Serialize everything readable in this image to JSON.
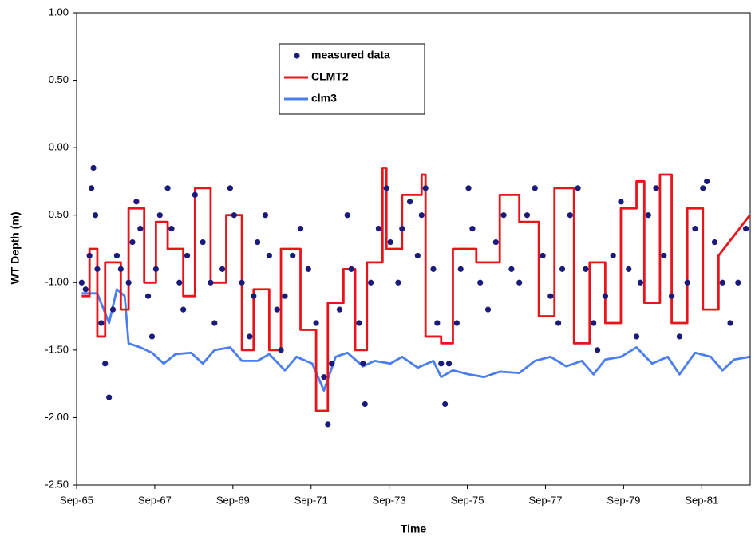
{
  "chart_data": {
    "type": "line",
    "xlabel": "Time",
    "ylabel": "WT Depth (m)",
    "xlim": [
      1965.67,
      1982.91
    ],
    "xticks": [
      {
        "value": 1965.67,
        "label": "Sep-65"
      },
      {
        "value": 1967.67,
        "label": "Sep-67"
      },
      {
        "value": 1969.67,
        "label": "Sep-69"
      },
      {
        "value": 1971.67,
        "label": "Sep-71"
      },
      {
        "value": 1973.67,
        "label": "Sep-73"
      },
      {
        "value": 1975.67,
        "label": "Sep-75"
      },
      {
        "value": 1977.67,
        "label": "Sep-77"
      },
      {
        "value": 1979.67,
        "label": "Sep-79"
      },
      {
        "value": 1981.67,
        "label": "Sep-81"
      }
    ],
    "ylim": [
      -2.5,
      1.0
    ],
    "yticks": [
      {
        "value": -2.5,
        "label": "-2.50"
      },
      {
        "value": -2.0,
        "label": "-2.00"
      },
      {
        "value": -1.5,
        "label": "-1.50"
      },
      {
        "value": -1.0,
        "label": "-1.00"
      },
      {
        "value": -0.5,
        "label": "-0.50"
      },
      {
        "value": 0.0,
        "label": "0.00"
      },
      {
        "value": 0.5,
        "label": "0.50"
      },
      {
        "value": 1.0,
        "label": "1.00"
      }
    ],
    "grid": false,
    "series": [
      {
        "name": "measured data",
        "kind": "scatter",
        "color": "#1a1a7a",
        "x": [
          1965.8,
          1965.9,
          1966.0,
          1966.05,
          1966.1,
          1966.15,
          1966.2,
          1966.3,
          1966.4,
          1966.5,
          1966.6,
          1966.7,
          1966.8,
          1967.0,
          1967.1,
          1967.2,
          1967.3,
          1967.5,
          1967.6,
          1967.7,
          1967.8,
          1968.0,
          1968.1,
          1968.3,
          1968.4,
          1968.5,
          1968.7,
          1968.9,
          1969.1,
          1969.2,
          1969.4,
          1969.6,
          1969.7,
          1969.9,
          1970.1,
          1970.2,
          1970.3,
          1970.5,
          1970.6,
          1970.8,
          1970.9,
          1971.0,
          1971.2,
          1971.4,
          1971.6,
          1971.8,
          1972.0,
          1972.1,
          1972.2,
          1972.4,
          1972.6,
          1972.7,
          1972.9,
          1973.0,
          1973.05,
          1973.2,
          1973.4,
          1973.6,
          1973.7,
          1973.9,
          1974.0,
          1974.2,
          1974.4,
          1974.5,
          1974.6,
          1974.8,
          1974.9,
          1975.0,
          1975.1,
          1975.2,
          1975.4,
          1975.5,
          1975.7,
          1975.8,
          1976.0,
          1976.2,
          1976.4,
          1976.6,
          1976.8,
          1977.0,
          1977.2,
          1977.4,
          1977.6,
          1977.8,
          1978.0,
          1978.1,
          1978.3,
          1978.5,
          1978.7,
          1978.9,
          1979.0,
          1979.2,
          1979.4,
          1979.6,
          1979.8,
          1980.0,
          1980.1,
          1980.3,
          1980.5,
          1980.7,
          1980.9,
          1981.1,
          1981.3,
          1981.5,
          1981.7,
          1981.8,
          1982.0,
          1982.2,
          1982.4,
          1982.6,
          1982.8
        ],
        "values": [
          -1.0,
          -1.05,
          -0.8,
          -0.3,
          -0.15,
          -0.5,
          -0.9,
          -1.3,
          -1.6,
          -1.85,
          -1.2,
          -0.8,
          -0.9,
          -1.0,
          -0.7,
          -0.4,
          -0.6,
          -1.1,
          -1.4,
          -0.9,
          -0.5,
          -0.3,
          -0.6,
          -1.0,
          -1.2,
          -0.8,
          -0.35,
          -0.7,
          -1.0,
          -1.3,
          -0.9,
          -0.3,
          -0.5,
          -1.0,
          -1.4,
          -1.1,
          -0.7,
          -0.5,
          -0.8,
          -1.2,
          -1.5,
          -1.1,
          -0.8,
          -0.6,
          -0.9,
          -1.3,
          -1.7,
          -2.05,
          -1.6,
          -1.2,
          -0.5,
          -0.9,
          -1.3,
          -1.6,
          -1.9,
          -1.0,
          -0.6,
          -0.3,
          -0.7,
          -1.0,
          -0.6,
          -0.4,
          -0.8,
          -0.5,
          -0.3,
          -0.9,
          -1.3,
          -1.6,
          -1.9,
          -1.6,
          -1.3,
          -0.9,
          -0.3,
          -0.6,
          -1.0,
          -1.2,
          -0.7,
          -0.5,
          -0.9,
          -1.0,
          -0.5,
          -0.3,
          -0.8,
          -1.1,
          -1.3,
          -0.9,
          -0.5,
          -0.3,
          -0.9,
          -1.3,
          -1.5,
          -1.1,
          -0.8,
          -0.4,
          -0.9,
          -1.4,
          -1.0,
          -0.5,
          -0.3,
          -0.8,
          -1.1,
          -1.4,
          -1.0,
          -0.6,
          -0.3,
          -0.25,
          -0.7,
          -1.0,
          -1.3,
          -1.0,
          -0.6
        ]
      },
      {
        "name": "CLMT2",
        "kind": "line",
        "color": "#e8141a",
        "x": [
          1965.8,
          1966.0,
          1966.0,
          1966.2,
          1966.2,
          1966.4,
          1966.4,
          1966.8,
          1966.8,
          1967.0,
          1967.0,
          1967.4,
          1967.4,
          1967.7,
          1967.7,
          1968.0,
          1968.0,
          1968.4,
          1968.4,
          1968.7,
          1968.7,
          1969.1,
          1969.1,
          1969.5,
          1969.5,
          1969.9,
          1969.9,
          1970.2,
          1970.2,
          1970.6,
          1970.6,
          1970.9,
          1970.9,
          1971.4,
          1971.4,
          1971.8,
          1971.8,
          1972.1,
          1972.1,
          1972.5,
          1972.5,
          1972.8,
          1972.8,
          1973.1,
          1973.1,
          1973.5,
          1973.5,
          1973.6,
          1973.6,
          1974.0,
          1974.0,
          1974.5,
          1974.5,
          1974.6,
          1974.6,
          1975.0,
          1975.0,
          1975.3,
          1975.3,
          1975.9,
          1975.9,
          1976.5,
          1976.5,
          1977.0,
          1977.0,
          1977.5,
          1977.5,
          1977.9,
          1977.9,
          1978.4,
          1978.4,
          1978.8,
          1978.8,
          1979.2,
          1979.2,
          1979.6,
          1979.6,
          1980.0,
          1980.0,
          1980.2,
          1980.2,
          1980.6,
          1980.6,
          1980.9,
          1980.9,
          1981.3,
          1981.3,
          1981.7,
          1981.7,
          1982.1,
          1982.1,
          1982.9
        ],
        "values": [
          -1.1,
          -1.1,
          -0.75,
          -0.75,
          -1.4,
          -1.4,
          -0.85,
          -0.85,
          -1.2,
          -1.2,
          -0.45,
          -0.45,
          -1.0,
          -1.0,
          -0.55,
          -0.55,
          -0.75,
          -0.75,
          -1.1,
          -1.1,
          -0.3,
          -0.3,
          -1.0,
          -1.0,
          -0.5,
          -0.5,
          -1.5,
          -1.5,
          -1.05,
          -1.05,
          -1.5,
          -1.5,
          -0.75,
          -0.75,
          -1.35,
          -1.35,
          -1.95,
          -1.95,
          -1.15,
          -1.15,
          -0.9,
          -0.9,
          -1.5,
          -1.5,
          -0.85,
          -0.85,
          -0.15,
          -0.15,
          -0.75,
          -0.75,
          -0.35,
          -0.35,
          -0.2,
          -0.2,
          -1.4,
          -1.4,
          -1.45,
          -1.45,
          -0.75,
          -0.75,
          -0.85,
          -0.85,
          -0.35,
          -0.35,
          -0.55,
          -0.55,
          -1.25,
          -1.25,
          -0.3,
          -0.3,
          -1.45,
          -1.45,
          -0.85,
          -0.85,
          -1.3,
          -1.3,
          -0.45,
          -0.45,
          -0.25,
          -0.25,
          -1.15,
          -1.15,
          -0.2,
          -0.2,
          -1.3,
          -1.3,
          -0.45,
          -0.45,
          -1.2,
          -1.2,
          -0.8,
          -0.5
        ]
      },
      {
        "name": "clm3",
        "kind": "line",
        "color": "#4a7ef0",
        "x": [
          1965.8,
          1966.2,
          1966.5,
          1966.7,
          1966.9,
          1967.0,
          1967.3,
          1967.6,
          1967.9,
          1968.2,
          1968.6,
          1968.9,
          1969.2,
          1969.6,
          1969.9,
          1970.3,
          1970.6,
          1971.0,
          1971.3,
          1971.7,
          1972.0,
          1972.3,
          1972.6,
          1973.0,
          1973.3,
          1973.7,
          1974.0,
          1974.4,
          1974.8,
          1975.0,
          1975.3,
          1975.7,
          1976.1,
          1976.5,
          1977.0,
          1977.4,
          1977.8,
          1978.2,
          1978.6,
          1978.9,
          1979.2,
          1979.6,
          1980.0,
          1980.4,
          1980.8,
          1981.1,
          1981.5,
          1981.9,
          1982.2,
          1982.5,
          1982.9
        ],
        "values": [
          -1.08,
          -1.08,
          -1.3,
          -1.05,
          -1.1,
          -1.45,
          -1.48,
          -1.52,
          -1.6,
          -1.53,
          -1.52,
          -1.6,
          -1.5,
          -1.48,
          -1.58,
          -1.58,
          -1.53,
          -1.65,
          -1.55,
          -1.6,
          -1.8,
          -1.55,
          -1.52,
          -1.62,
          -1.58,
          -1.6,
          -1.55,
          -1.63,
          -1.58,
          -1.7,
          -1.65,
          -1.68,
          -1.7,
          -1.66,
          -1.67,
          -1.58,
          -1.55,
          -1.62,
          -1.58,
          -1.68,
          -1.57,
          -1.55,
          -1.48,
          -1.6,
          -1.55,
          -1.68,
          -1.52,
          -1.55,
          -1.65,
          -1.57,
          -1.55
        ]
      }
    ]
  }
}
